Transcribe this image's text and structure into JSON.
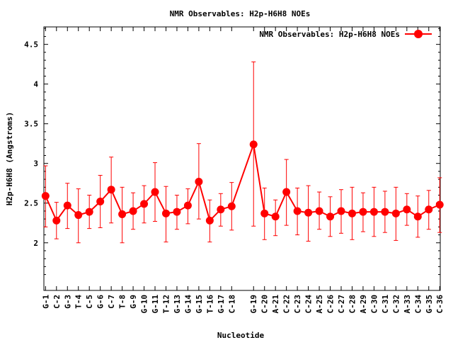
{
  "chart_data": {
    "type": "line",
    "title": "NMR Observables: H2p-H6H8 NOEs",
    "xlabel": "Nucleotide",
    "ylabel": "H2p-H6H8 (Angstroms)",
    "ylim": [
      1.4,
      4.72
    ],
    "yticks": [
      "2",
      "2.5",
      "3",
      "3.5",
      "4",
      "4.5"
    ],
    "grid": false,
    "legend_position": "top-right",
    "colors": {
      "series": "#ff0000",
      "axis": "#000000"
    },
    "categories": [
      "G-1",
      "C-2",
      "G-3",
      "T-4",
      "C-5",
      "G-6",
      "C-7",
      "T-8",
      "G-9",
      "G-10",
      "G-11",
      "T-12",
      "G-13",
      "G-14",
      "G-15",
      "T-16",
      "G-17",
      "C-18",
      "G-19",
      "C-20",
      "A-21",
      "C-22",
      "C-23",
      "C-24",
      "A-25",
      "C-26",
      "C-27",
      "C-28",
      "A-29",
      "C-30",
      "C-31",
      "C-32",
      "A-33",
      "C-34",
      "G-35",
      "C-36"
    ],
    "x": [
      1,
      2,
      3,
      4,
      5,
      6,
      7,
      8,
      9,
      10,
      11,
      12,
      13,
      14,
      15,
      16,
      17,
      18,
      20,
      21,
      22,
      23,
      24,
      25,
      26,
      27,
      28,
      29,
      30,
      31,
      32,
      33,
      34,
      35,
      36,
      37
    ],
    "series": [
      {
        "name": "NMR Observables: H2p-H6H8 NOEs",
        "values": [
          2.59,
          2.28,
          2.47,
          2.35,
          2.39,
          2.52,
          2.67,
          2.36,
          2.4,
          2.49,
          2.64,
          2.37,
          2.39,
          2.47,
          2.77,
          2.28,
          2.42,
          2.46,
          3.24,
          2.37,
          2.33,
          2.64,
          2.4,
          2.38,
          2.4,
          2.33,
          2.4,
          2.37,
          2.39,
          2.39,
          2.39,
          2.37,
          2.42,
          2.33,
          2.42,
          2.48
        ],
        "err_low": [
          2.2,
          2.05,
          2.18,
          2.0,
          2.18,
          2.19,
          2.25,
          2.0,
          2.17,
          2.25,
          2.27,
          2.01,
          2.17,
          2.24,
          2.3,
          2.01,
          2.21,
          2.16,
          2.21,
          2.04,
          2.09,
          2.22,
          2.1,
          2.02,
          2.17,
          2.08,
          2.12,
          2.04,
          2.14,
          2.08,
          2.13,
          2.03,
          2.22,
          2.07,
          2.17,
          2.13
        ],
        "err_high": [
          2.97,
          2.51,
          2.75,
          2.68,
          2.6,
          2.85,
          3.08,
          2.7,
          2.63,
          2.72,
          3.01,
          2.71,
          2.6,
          2.68,
          3.25,
          2.54,
          2.62,
          2.76,
          4.28,
          2.69,
          2.54,
          3.05,
          2.69,
          2.72,
          2.64,
          2.58,
          2.67,
          2.7,
          2.63,
          2.7,
          2.65,
          2.7,
          2.62,
          2.59,
          2.66,
          2.82
        ]
      }
    ]
  }
}
